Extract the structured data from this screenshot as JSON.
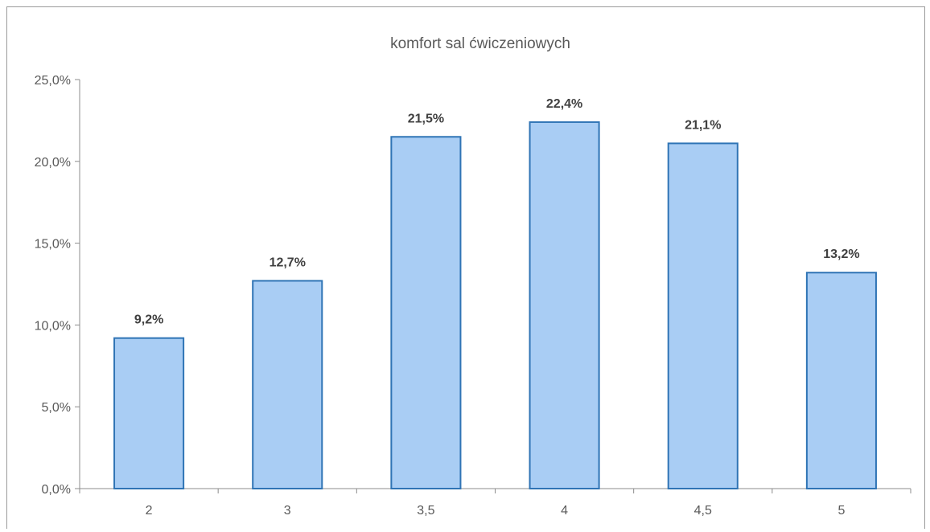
{
  "chart_data": {
    "type": "bar",
    "title": "komfort sal ćwiczeniowych",
    "xlabel": "",
    "ylabel": "",
    "categories": [
      "2",
      "3",
      "3,5",
      "4",
      "4,5",
      "5"
    ],
    "values": [
      9.2,
      12.7,
      21.5,
      22.4,
      21.1,
      13.2
    ],
    "data_labels": [
      "9,2%",
      "12,7%",
      "21,5%",
      "22,4%",
      "21,1%",
      "13,2%"
    ],
    "ylim": [
      0,
      25
    ],
    "yticks": [
      0,
      5,
      10,
      15,
      20,
      25
    ],
    "ytick_labels": [
      "0,0%",
      "5,0%",
      "10,0%",
      "15,0%",
      "20,0%",
      "25,0%"
    ],
    "grid": false,
    "legend": "none",
    "colors": {
      "bar_fill": "#a9cdf4",
      "bar_stroke": "#2f74b5",
      "axis": "#8c8c8c"
    }
  }
}
